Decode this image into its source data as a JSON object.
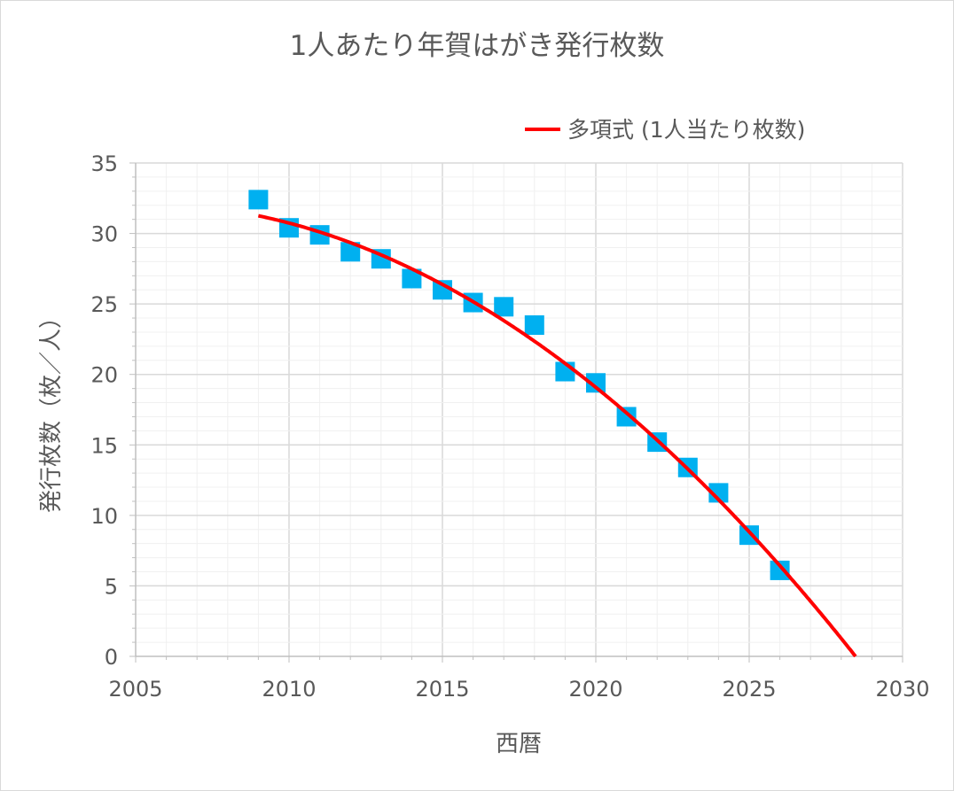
{
  "chart_data": {
    "type": "scatter",
    "title": "1人あたり年賀はがき発行枚数",
    "xlabel": "西暦",
    "ylabel": "発行枚数（枚／人）",
    "xlim": [
      2005,
      2030
    ],
    "ylim": [
      0,
      35
    ],
    "x_ticks": [
      "2005",
      "2010",
      "2015",
      "2020",
      "2025",
      "2030"
    ],
    "y_ticks": [
      "0",
      "5",
      "10",
      "15",
      "20",
      "25",
      "30",
      "35"
    ],
    "grid": {
      "major": true,
      "minor": true
    },
    "legend_position": "top-right",
    "series": [
      {
        "marker": "square",
        "color": "#00B0F0",
        "x": [
          2009,
          2010,
          2011,
          2012,
          2013,
          2014,
          2015,
          2016,
          2017,
          2018,
          2019,
          2020,
          2021,
          2022,
          2023,
          2024,
          2025,
          2026
        ],
        "y": [
          32.4,
          30.4,
          29.9,
          28.7,
          28.2,
          26.8,
          26.0,
          25.1,
          24.8,
          23.5,
          20.2,
          19.4,
          17.0,
          15.2,
          13.4,
          11.6,
          8.6,
          6.1
        ]
      }
    ],
    "trendline": {
      "type": "polynomial",
      "order": 2,
      "name": "多項式 (1人当たり枚数)",
      "color": "#FF0000"
    }
  }
}
